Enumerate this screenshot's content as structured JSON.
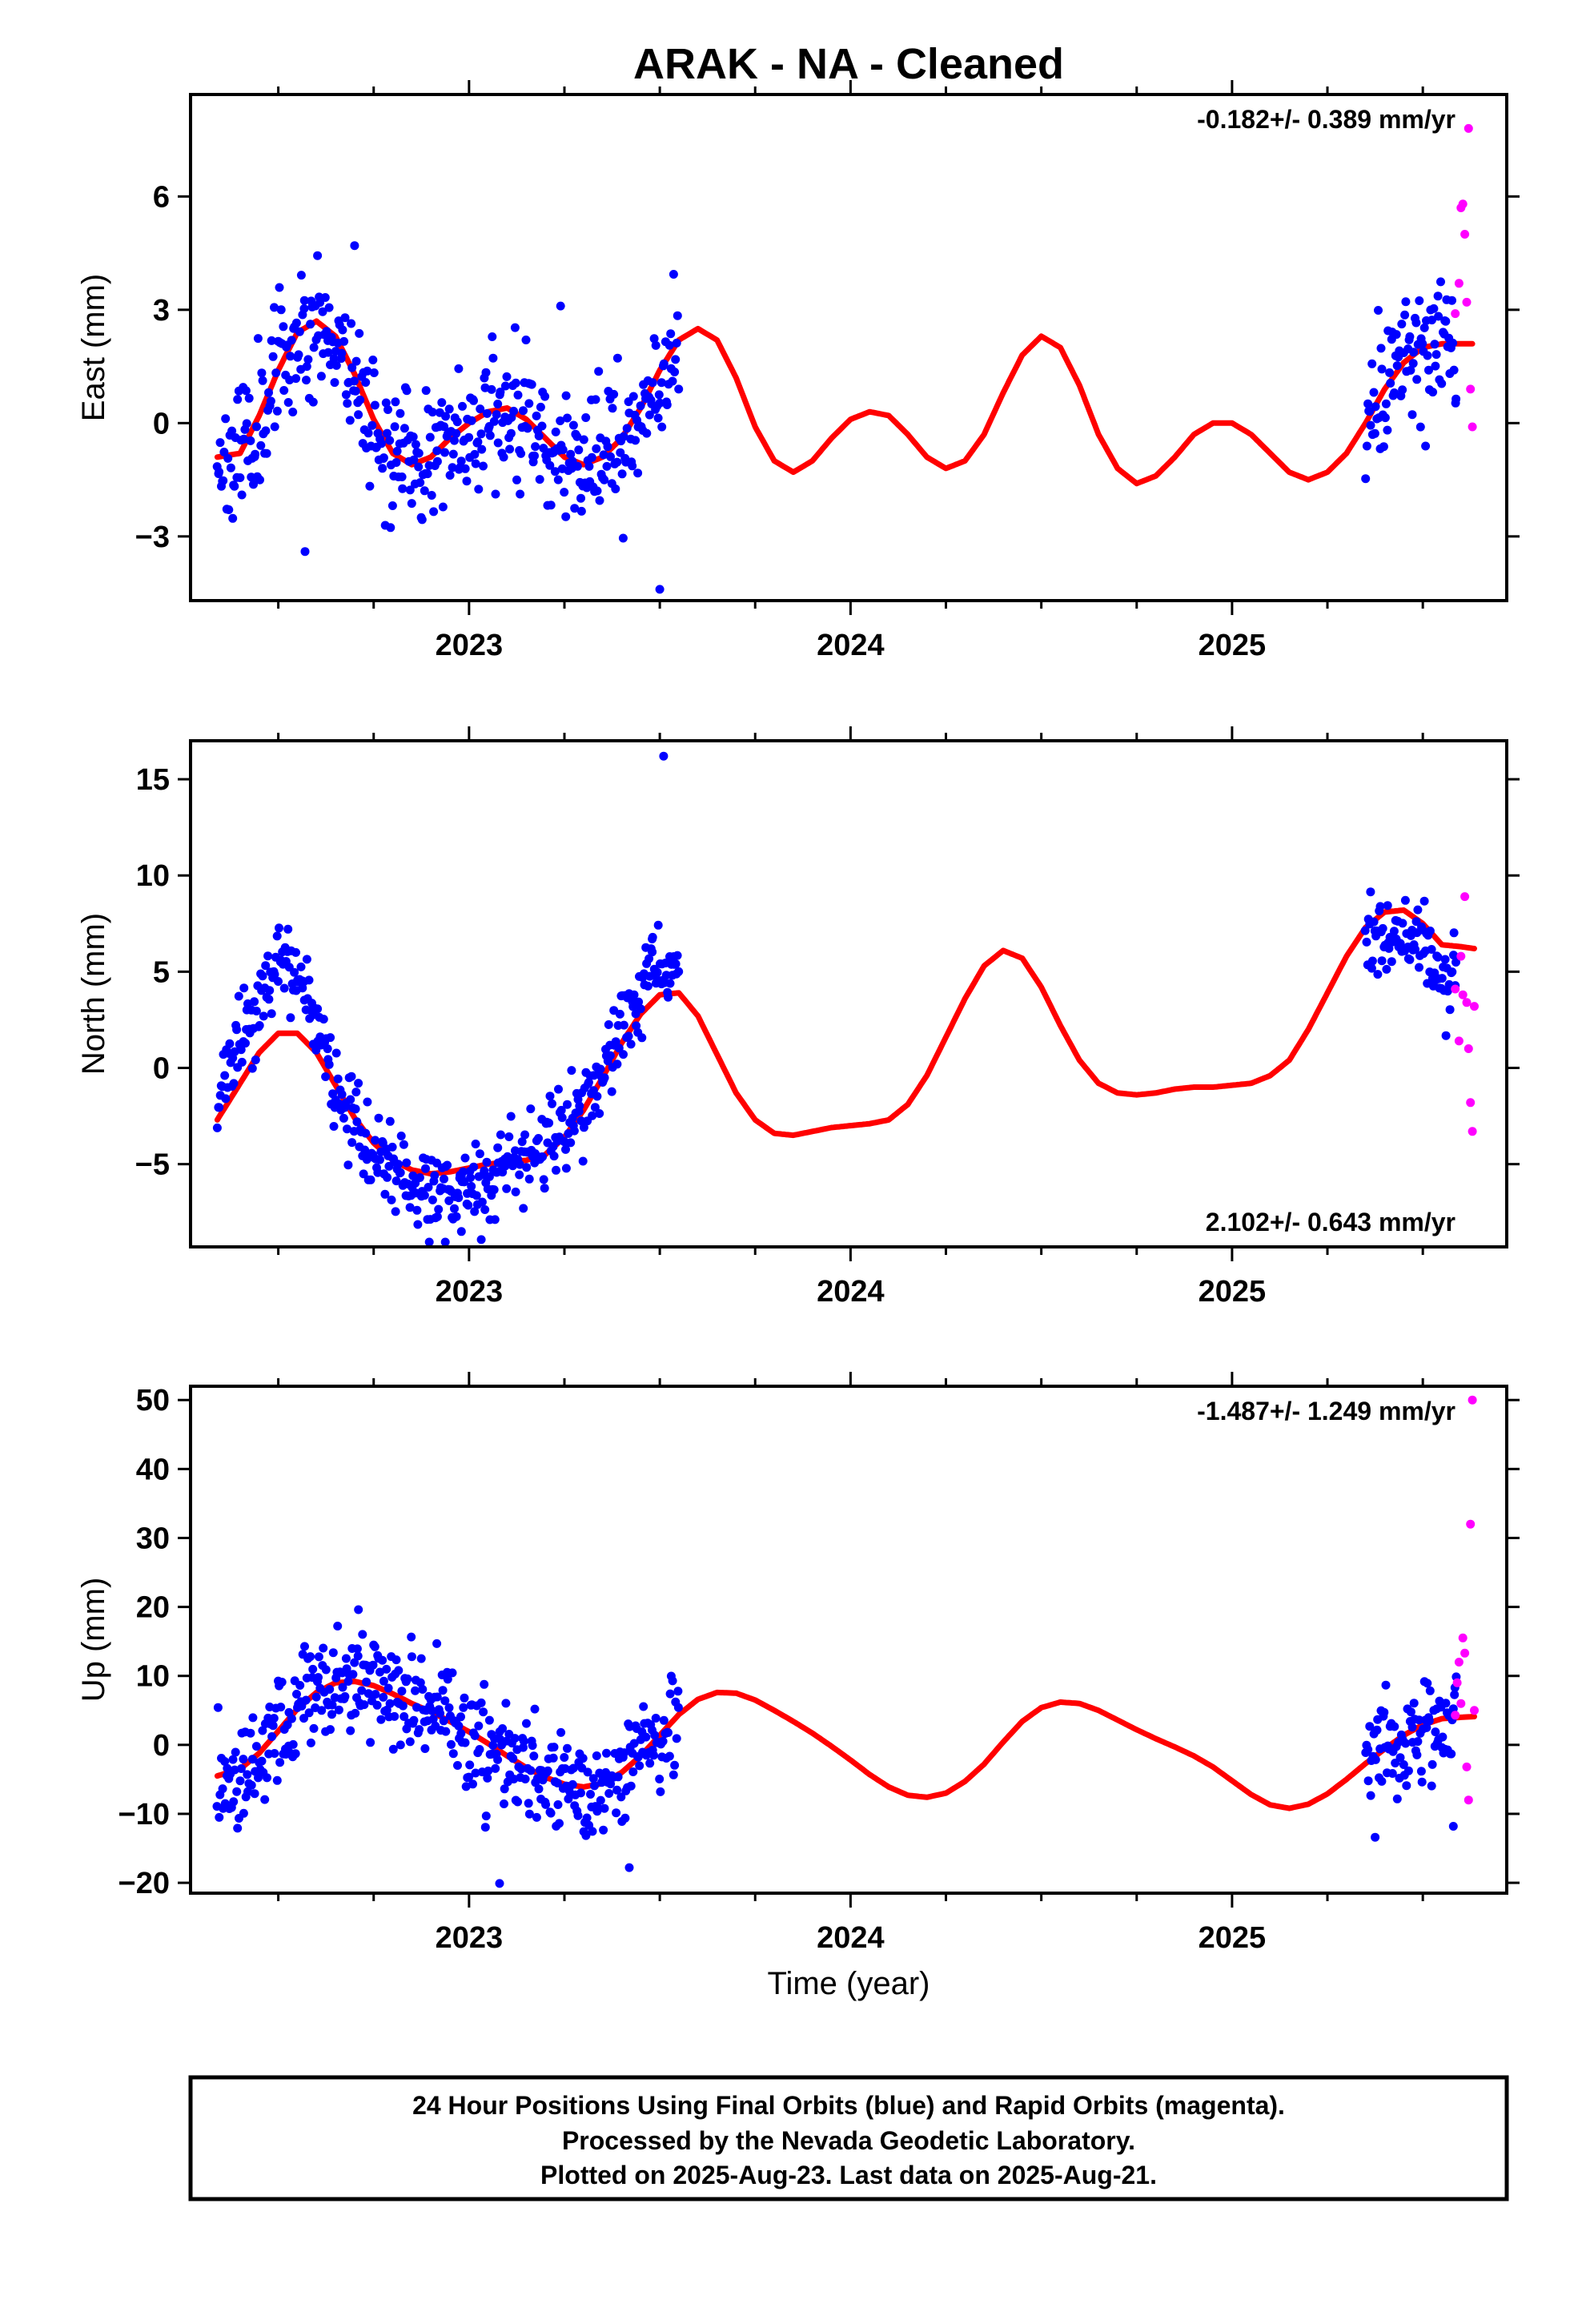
{
  "title": "ARAK  - NA - Cleaned",
  "xlabel": "Time (year)",
  "footer": {
    "line1": "24 Hour Positions Using Final Orbits (blue) and Rapid Orbits (magenta).",
    "line2": "Processed by the Nevada Geodetic Laboratory.",
    "line3": "Plotted on 2025-Aug-23. Last data on 2025-Aug-21."
  },
  "colors": {
    "final": "#0000ff",
    "rapid": "#ff00ff",
    "model": "#ff0000",
    "frame": "#000000"
  },
  "chart_data": [
    {
      "type": "scatter",
      "panel": "east",
      "ylabel": "East (mm)",
      "rate": "-0.182+/- 0.389 mm/yr",
      "rate_position": "top-right",
      "xlim": [
        2022.27,
        2025.72
      ],
      "ylim": [
        -4.7,
        8.7
      ],
      "xticks": [
        "2023",
        "2024",
        "2025"
      ],
      "yticks": [
        -3,
        0,
        3,
        6
      ],
      "yticklabels": [
        "−3",
        "0",
        "3",
        "6"
      ],
      "final_orbits": {
        "seed": 11,
        "segments": [
          {
            "start": 2022.34,
            "end": 2023.55,
            "spacing": 0.0027
          },
          {
            "start": 2025.35,
            "end": 2025.59,
            "spacing": 0.0027
          }
        ],
        "scatter_mm": 0.9,
        "outliers": [
          [
            2023.5,
            -4.4
          ],
          [
            2022.57,
            -3.4
          ],
          [
            2023.24,
            3.1
          ],
          [
            2022.7,
            4.7
          ]
        ]
      },
      "rapid_orbits": [
        [
          2025.585,
          2.9
        ],
        [
          2025.595,
          3.7
        ],
        [
          2025.6,
          5.7
        ],
        [
          2025.605,
          5.8
        ],
        [
          2025.61,
          5.0
        ],
        [
          2025.615,
          3.2
        ],
        [
          2025.62,
          7.8
        ],
        [
          2025.625,
          0.9
        ],
        [
          2025.63,
          -0.1
        ]
      ],
      "model": {
        "x": [
          2022.34,
          2022.4,
          2022.45,
          2022.5,
          2022.55,
          2022.6,
          2022.65,
          2022.7,
          2022.75,
          2022.8,
          2022.85,
          2022.9,
          2022.95,
          2023.0,
          2023.05,
          2023.1,
          2023.15,
          2023.2,
          2023.25,
          2023.3,
          2023.35,
          2023.4,
          2023.45,
          2023.5,
          2023.55,
          2023.6,
          2023.65,
          2023.7,
          2023.75,
          2023.8,
          2023.85,
          2023.9,
          2023.95,
          2024.0,
          2024.05,
          2024.1,
          2024.15,
          2024.2,
          2024.25,
          2024.3,
          2024.35,
          2024.4,
          2024.45,
          2024.5,
          2024.55,
          2024.6,
          2024.65,
          2024.7,
          2024.75,
          2024.8,
          2024.85,
          2024.9,
          2024.95,
          2025.0,
          2025.05,
          2025.1,
          2025.15,
          2025.2,
          2025.25,
          2025.3,
          2025.35,
          2025.4,
          2025.45,
          2025.5,
          2025.55,
          2025.6,
          2025.63
        ],
        "y": [
          -0.9,
          -0.8,
          0.2,
          1.4,
          2.4,
          2.7,
          2.3,
          1.3,
          0.1,
          -0.8,
          -1.1,
          -0.9,
          -0.4,
          0.0,
          0.3,
          0.4,
          0.1,
          -0.4,
          -0.9,
          -1.1,
          -0.9,
          -0.4,
          0.4,
          1.4,
          2.2,
          2.5,
          2.2,
          1.2,
          -0.1,
          -1.0,
          -1.3,
          -1.0,
          -0.4,
          0.1,
          0.3,
          0.2,
          -0.3,
          -0.9,
          -1.2,
          -1.0,
          -0.3,
          0.8,
          1.8,
          2.3,
          2.0,
          1.0,
          -0.3,
          -1.2,
          -1.6,
          -1.4,
          -0.9,
          -0.3,
          0.0,
          0.0,
          -0.3,
          -0.8,
          -1.3,
          -1.5,
          -1.3,
          -0.8,
          0.0,
          0.9,
          1.6,
          2.0,
          2.1,
          2.1,
          2.1
        ]
      }
    },
    {
      "type": "scatter",
      "panel": "north",
      "ylabel": "North (mm)",
      "rate": "2.102+/- 0.643 mm/yr",
      "rate_position": "bottom-right",
      "xlim": [
        2022.27,
        2025.72
      ],
      "ylim": [
        -9.3,
        17.0
      ],
      "xticks": [
        "2023",
        "2024",
        "2025"
      ],
      "yticks": [
        -5,
        0,
        5,
        10,
        15
      ],
      "yticklabels": [
        "−5",
        "0",
        "5",
        "10",
        "15"
      ],
      "final_orbits": {
        "seed": 23,
        "segments": [
          {
            "start": 2022.34,
            "end": 2023.55,
            "spacing": 0.0027
          },
          {
            "start": 2025.35,
            "end": 2025.59,
            "spacing": 0.0027
          }
        ],
        "offset_profile": {
          "x": [
            2022.34,
            2022.42,
            2022.5,
            2022.55,
            2022.62,
            2022.7,
            2022.8,
            2022.9,
            2023.0,
            2023.1,
            2023.2,
            2023.3,
            2023.38,
            2023.45,
            2023.55
          ],
          "dy": [
            0.8,
            2.4,
            3.5,
            2.6,
            1.0,
            -0.6,
            -0.5,
            -0.8,
            -1.4,
            -0.3,
            0.4,
            0.2,
            0.6,
            1.2,
            1.0
          ]
        },
        "segment2_offset": -1.4,
        "scatter_mm": 1.1,
        "outliers": [
          [
            2023.51,
            16.2
          ],
          [
            2022.98,
            -8.5
          ],
          [
            2023.48,
            6.7
          ]
        ]
      },
      "rapid_orbits": [
        [
          2025.585,
          4.1
        ],
        [
          2025.595,
          1.4
        ],
        [
          2025.6,
          5.8
        ],
        [
          2025.605,
          3.8
        ],
        [
          2025.61,
          8.9
        ],
        [
          2025.615,
          3.4
        ],
        [
          2025.62,
          1.0
        ],
        [
          2025.625,
          -1.8
        ],
        [
          2025.63,
          -3.3
        ],
        [
          2025.635,
          3.2
        ]
      ],
      "model": {
        "x": [
          2022.34,
          2022.4,
          2022.45,
          2022.5,
          2022.55,
          2022.6,
          2022.65,
          2022.7,
          2022.75,
          2022.8,
          2022.85,
          2022.9,
          2022.95,
          2023.0,
          2023.05,
          2023.1,
          2023.15,
          2023.2,
          2023.25,
          2023.3,
          2023.35,
          2023.4,
          2023.45,
          2023.5,
          2023.55,
          2023.6,
          2023.65,
          2023.7,
          2023.75,
          2023.8,
          2023.85,
          2023.9,
          2023.95,
          2024.0,
          2024.05,
          2024.1,
          2024.15,
          2024.2,
          2024.25,
          2024.3,
          2024.35,
          2024.4,
          2024.45,
          2024.5,
          2024.55,
          2024.6,
          2024.65,
          2024.7,
          2024.75,
          2024.8,
          2024.85,
          2024.9,
          2024.95,
          2025.0,
          2025.05,
          2025.1,
          2025.15,
          2025.2,
          2025.25,
          2025.3,
          2025.35,
          2025.4,
          2025.45,
          2025.5,
          2025.55,
          2025.6,
          2025.635
        ],
        "y": [
          -2.7,
          -0.8,
          0.8,
          1.8,
          1.8,
          0.8,
          -0.9,
          -2.6,
          -3.9,
          -4.8,
          -5.3,
          -5.5,
          -5.4,
          -5.2,
          -5.0,
          -4.9,
          -4.8,
          -4.5,
          -3.6,
          -2.2,
          -0.5,
          1.3,
          2.8,
          3.8,
          3.9,
          2.7,
          0.7,
          -1.3,
          -2.7,
          -3.4,
          -3.5,
          -3.3,
          -3.1,
          -3.0,
          -2.9,
          -2.7,
          -1.9,
          -0.4,
          1.6,
          3.6,
          5.3,
          6.1,
          5.7,
          4.2,
          2.2,
          0.4,
          -0.8,
          -1.3,
          -1.4,
          -1.3,
          -1.1,
          -1.0,
          -1.0,
          -0.9,
          -0.8,
          -0.4,
          0.4,
          2.0,
          3.9,
          5.8,
          7.3,
          8.1,
          8.2,
          7.5,
          6.4,
          6.3,
          6.2
        ]
      }
    },
    {
      "type": "scatter",
      "panel": "up",
      "ylabel": "Up (mm)",
      "rate": "-1.487+/- 1.249 mm/yr",
      "rate_position": "top-right",
      "xlim": [
        2022.27,
        2025.72
      ],
      "ylim": [
        -21.5,
        52.0
      ],
      "xticks": [
        "2023",
        "2024",
        "2025"
      ],
      "yticks": [
        -20,
        -10,
        0,
        10,
        20,
        30,
        40,
        50
      ],
      "yticklabels": [
        "−20",
        "−10",
        "0",
        "10",
        "20",
        "30",
        "40",
        "50"
      ],
      "final_orbits": {
        "seed": 37,
        "segments": [
          {
            "start": 2022.34,
            "end": 2023.55,
            "spacing": 0.0027
          },
          {
            "start": 2025.35,
            "end": 2025.59,
            "spacing": 0.0027
          }
        ],
        "scatter_mm": 4.0,
        "outliers": [
          [
            2023.08,
            -20.1
          ],
          [
            2022.71,
            19.6
          ],
          [
            2023.42,
            -17.8
          ],
          [
            2025.58,
            -11.8
          ]
        ]
      },
      "rapid_orbits": [
        [
          2025.585,
          4.3
        ],
        [
          2025.59,
          9.0
        ],
        [
          2025.595,
          12.0
        ],
        [
          2025.6,
          6.0
        ],
        [
          2025.605,
          15.5
        ],
        [
          2025.61,
          13.3
        ],
        [
          2025.615,
          -3.2
        ],
        [
          2025.62,
          -8.0
        ],
        [
          2025.625,
          32.0
        ],
        [
          2025.63,
          50.0
        ],
        [
          2025.635,
          5.0
        ]
      ],
      "model": {
        "x": [
          2022.34,
          2022.4,
          2022.45,
          2022.5,
          2022.55,
          2022.6,
          2022.65,
          2022.7,
          2022.75,
          2022.8,
          2022.85,
          2022.9,
          2022.95,
          2023.0,
          2023.05,
          2023.1,
          2023.15,
          2023.2,
          2023.25,
          2023.3,
          2023.35,
          2023.4,
          2023.45,
          2023.5,
          2023.55,
          2023.6,
          2023.65,
          2023.7,
          2023.75,
          2023.8,
          2023.85,
          2023.9,
          2023.95,
          2024.0,
          2024.05,
          2024.1,
          2024.15,
          2024.2,
          2024.25,
          2024.3,
          2024.35,
          2024.4,
          2024.45,
          2024.5,
          2024.55,
          2024.6,
          2024.65,
          2024.7,
          2024.75,
          2024.8,
          2024.85,
          2024.9,
          2024.95,
          2025.0,
          2025.05,
          2025.1,
          2025.15,
          2025.2,
          2025.25,
          2025.3,
          2025.35,
          2025.4,
          2025.45,
          2025.5,
          2025.55,
          2025.6,
          2025.635
        ],
        "y": [
          -4.5,
          -3.5,
          -1.2,
          2.0,
          5.2,
          7.6,
          9.0,
          9.2,
          8.6,
          7.4,
          6.0,
          4.8,
          3.4,
          1.9,
          0.2,
          -1.6,
          -3.3,
          -4.7,
          -5.7,
          -6.1,
          -5.6,
          -4.0,
          -1.6,
          1.4,
          4.4,
          6.6,
          7.6,
          7.5,
          6.5,
          5.0,
          3.4,
          1.7,
          -0.2,
          -2.2,
          -4.3,
          -6.1,
          -7.3,
          -7.6,
          -7.0,
          -5.3,
          -2.8,
          0.4,
          3.4,
          5.4,
          6.2,
          6.0,
          5.0,
          3.6,
          2.2,
          0.9,
          -0.3,
          -1.6,
          -3.2,
          -5.2,
          -7.2,
          -8.7,
          -9.2,
          -8.6,
          -7.1,
          -5.0,
          -2.7,
          -0.6,
          1.4,
          2.9,
          3.8,
          4.0,
          4.1
        ]
      }
    }
  ]
}
